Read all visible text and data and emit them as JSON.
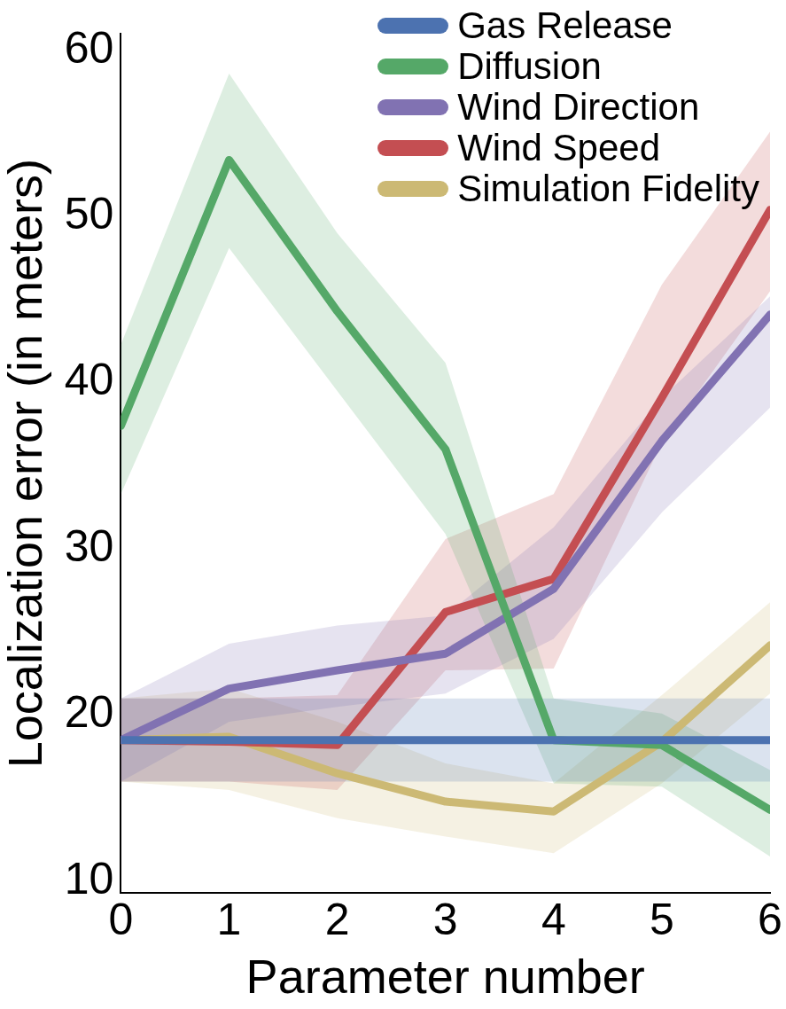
{
  "chart_data": {
    "type": "line",
    "xlabel": "Parameter number",
    "ylabel": "Localization error (in meters)",
    "x": [
      0,
      1,
      2,
      3,
      4,
      5,
      6
    ],
    "xlim": [
      0,
      6
    ],
    "xticks": [
      0,
      1,
      2,
      3,
      4,
      5,
      6
    ],
    "ylim": [
      9.3,
      61
    ],
    "yticks": [
      10,
      20,
      30,
      40,
      50,
      60
    ],
    "grid": false,
    "legend": "top right",
    "marker": "none",
    "line_style": "solid",
    "series": [
      {
        "name": "Gas Release",
        "color": "#4c72b0",
        "values": [
          18.5,
          18.5,
          18.5,
          18.5,
          18.5,
          18.5,
          18.5
        ],
        "lower": [
          16.0,
          16.0,
          16.0,
          16.0,
          16.0,
          16.0,
          16.0
        ],
        "upper": [
          21.0,
          21.0,
          21.0,
          21.0,
          21.0,
          21.0,
          21.0
        ]
      },
      {
        "name": "Diffusion",
        "color": "#55a868",
        "values": [
          37.4,
          53.4,
          44.3,
          36.0,
          18.5,
          18.2,
          14.3
        ],
        "lower": [
          33.3,
          48.1,
          39.5,
          30.9,
          15.9,
          15.7,
          11.5
        ],
        "upper": [
          42.3,
          58.6,
          49.0,
          41.2,
          21.0,
          20.1,
          16.7
        ]
      },
      {
        "name": "Wind Direction",
        "color": "#8172b2",
        "values": [
          18.5,
          21.6,
          22.7,
          23.7,
          27.6,
          36.5,
          44.1
        ],
        "lower": [
          16.0,
          19.6,
          20.5,
          21.3,
          24.6,
          32.2,
          38.5
        ],
        "upper": [
          21.0,
          24.3,
          25.4,
          26.0,
          31.3,
          39.1,
          45.2
        ]
      },
      {
        "name": "Wind Speed",
        "color": "#c44e52",
        "values": [
          18.5,
          18.4,
          18.2,
          26.2,
          28.2,
          39.1,
          50.4
        ],
        "lower": [
          16.0,
          16.0,
          15.5,
          22.7,
          22.8,
          36.4,
          45.5
        ],
        "upper": [
          21.0,
          21.0,
          21.2,
          30.6,
          33.3,
          45.9,
          55.1
        ]
      },
      {
        "name": "Simulation Fidelity",
        "color": "#ccb974",
        "values": [
          18.5,
          18.7,
          16.5,
          14.8,
          14.2,
          18.4,
          24.2
        ],
        "lower": [
          16.0,
          15.5,
          13.8,
          12.7,
          11.7,
          15.9,
          21.3
        ],
        "upper": [
          21.0,
          21.6,
          19.6,
          17.1,
          15.9,
          21.2,
          26.8
        ]
      }
    ]
  }
}
